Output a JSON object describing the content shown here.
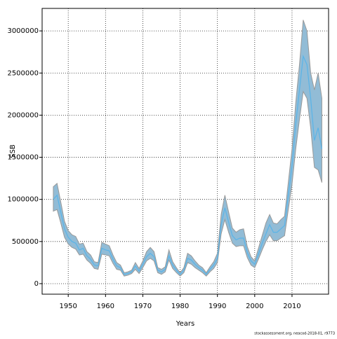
{
  "chart_data": {
    "type": "band-line",
    "xlabel": "Years",
    "ylabel": "SSB",
    "footer": "stockassessment.org, neacod-2018-01, r9773",
    "x": [
      1946,
      1947,
      1948,
      1949,
      1950,
      1951,
      1952,
      1953,
      1954,
      1955,
      1956,
      1957,
      1958,
      1959,
      1960,
      1961,
      1962,
      1963,
      1964,
      1965,
      1966,
      1967,
      1968,
      1969,
      1970,
      1971,
      1972,
      1973,
      1974,
      1975,
      1976,
      1977,
      1978,
      1979,
      1980,
      1981,
      1982,
      1983,
      1984,
      1985,
      1986,
      1987,
      1988,
      1989,
      1990,
      1991,
      1992,
      1993,
      1994,
      1995,
      1996,
      1997,
      1998,
      1999,
      2000,
      2001,
      2002,
      2003,
      2004,
      2005,
      2006,
      2007,
      2008,
      2009,
      2010,
      2011,
      2012,
      2013,
      2014,
      2015,
      2016,
      2017,
      2018
    ],
    "series": [
      {
        "color": "#5ab4e8",
        "values": [
          1000000,
          1050000,
          850000,
          650000,
          550000,
          500000,
          480000,
          400000,
          420000,
          330000,
          290000,
          220000,
          210000,
          420000,
          400000,
          390000,
          290000,
          210000,
          190000,
          110000,
          120000,
          140000,
          210000,
          150000,
          230000,
          320000,
          360000,
          320000,
          160000,
          140000,
          170000,
          330000,
          220000,
          160000,
          110000,
          160000,
          300000,
          280000,
          230000,
          190000,
          160000,
          110000,
          170000,
          220000,
          300000,
          700000,
          900000,
          730000,
          570000,
          520000,
          540000,
          540000,
          370000,
          270000,
          230000,
          350000,
          480000,
          590000,
          700000,
          610000,
          610000,
          650000,
          690000,
          1050000,
          1400000,
          1900000,
          2300000,
          2700000,
          2600000,
          2200000,
          1700000,
          1850000,
          1600000
        ]
      },
      {
        "color": "#999999",
        "values": [
          1150000,
          1190000,
          970000,
          740000,
          630000,
          580000,
          560000,
          470000,
          480000,
          380000,
          340000,
          260000,
          250000,
          490000,
          470000,
          450000,
          340000,
          250000,
          220000,
          130000,
          140000,
          160000,
          250000,
          180000,
          270000,
          380000,
          430000,
          380000,
          190000,
          170000,
          200000,
          400000,
          260000,
          190000,
          130000,
          190000,
          360000,
          330000,
          270000,
          220000,
          190000,
          130000,
          200000,
          260000,
          360000,
          820000,
          1050000,
          850000,
          660000,
          610000,
          640000,
          650000,
          440000,
          320000,
          270000,
          420000,
          570000,
          720000,
          820000,
          720000,
          710000,
          760000,
          800000,
          1200000,
          1600000,
          2150000,
          2600000,
          3130000,
          3000000,
          2500000,
          2300000,
          2500000,
          2200000
        ]
      },
      {
        "color": "#999999",
        "values": [
          860000,
          880000,
          720000,
          550000,
          470000,
          430000,
          410000,
          340000,
          350000,
          280000,
          240000,
          180000,
          170000,
          350000,
          340000,
          330000,
          240000,
          170000,
          160000,
          90000,
          100000,
          120000,
          170000,
          120000,
          190000,
          270000,
          300000,
          270000,
          130000,
          110000,
          140000,
          280000,
          180000,
          130000,
          90000,
          130000,
          250000,
          230000,
          190000,
          160000,
          130000,
          90000,
          140000,
          180000,
          250000,
          590000,
          760000,
          610000,
          480000,
          440000,
          450000,
          450000,
          310000,
          220000,
          190000,
          290000,
          400000,
          500000,
          580000,
          510000,
          510000,
          540000,
          570000,
          880000,
          1180000,
          1600000,
          1950000,
          2280000,
          2200000,
          1850000,
          1380000,
          1350000,
          1200000
        ]
      }
    ],
    "band_fill": "#92bcd6",
    "xlim": [
      1943,
      2019.8
    ],
    "xticks": [
      1950,
      1960,
      1970,
      1980,
      1990,
      2000,
      2010
    ],
    "ylim": [
      -125000,
      3267000
    ],
    "yticks": [
      0,
      500000,
      1000000,
      1500000,
      2000000,
      2500000,
      3000000
    ],
    "grid": true
  }
}
